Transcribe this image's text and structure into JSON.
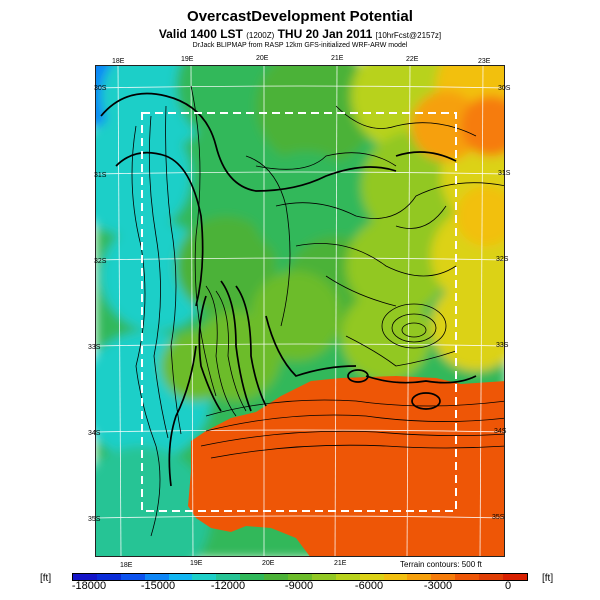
{
  "header": {
    "title": "OvercastDevelopment Potential",
    "valid_main": "Valid 1400 LST",
    "valid_code": "(1200Z)",
    "valid_date": "THU 20 Jan 2011",
    "valid_model": "[10hrFcst@2157z]",
    "credit": "DrJack BLIPMAP from RASP 12km GFS-initialized WRF-ARW model"
  },
  "map": {
    "longitude_labels": [
      "18E",
      "19E",
      "20E",
      "21E",
      "22E",
      "23E"
    ],
    "latitude_labels": [
      "30S",
      "31S",
      "32S",
      "33S",
      "34S",
      "35S"
    ],
    "terrain_note": "Terrain contours: 500 ft",
    "palette": [
      "#0a2cd8",
      "#0c52ee",
      "#0e86f6",
      "#12b6f2",
      "#1ecfc8",
      "#26c495",
      "#30b85a",
      "#4cb238",
      "#6cbc2a",
      "#92c824",
      "#b8d21c",
      "#dcd216",
      "#f2c010",
      "#f6a00c",
      "#f67c0a",
      "#ee5606",
      "#e03e04"
    ]
  },
  "colorbar": {
    "unit_left": "[ft]",
    "unit_right": "[ft]",
    "tick_labels": [
      "-18000",
      "-15000",
      "-12000",
      "-9000",
      "-6000",
      "-3000",
      "0"
    ],
    "colors": [
      "#1414c8",
      "#0a2cd8",
      "#0c52ee",
      "#0e86f6",
      "#12b6f2",
      "#1ecfc8",
      "#26c495",
      "#30b85a",
      "#4cb238",
      "#6cbc2a",
      "#92c824",
      "#b8d21c",
      "#dcd216",
      "#f2c010",
      "#f6a00c",
      "#f67c0a",
      "#ee5606",
      "#e03e04",
      "#d82000"
    ]
  }
}
